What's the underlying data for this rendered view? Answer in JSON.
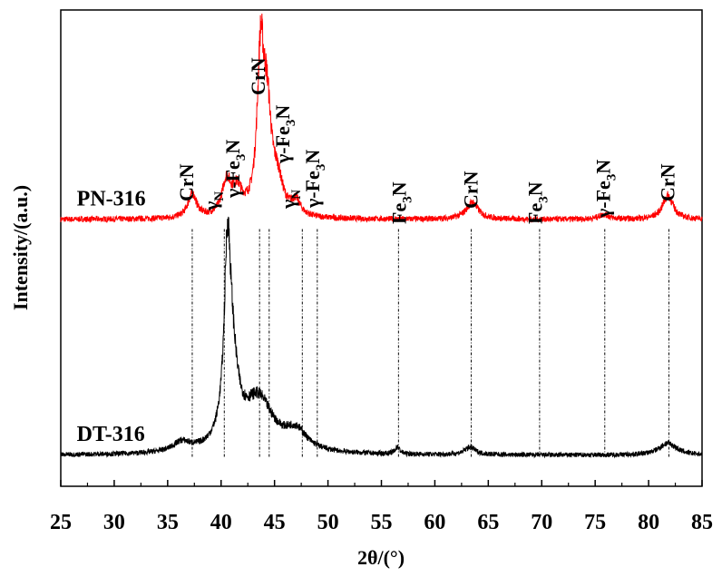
{
  "chart_data": {
    "type": "line",
    "xlabel": "2θ/(°)",
    "ylabel": "Intensity/(a.u.)",
    "xlim": [
      25,
      85
    ],
    "ylim": [
      0,
      100
    ],
    "x_ticks": [
      25,
      30,
      35,
      40,
      45,
      50,
      55,
      60,
      65,
      70,
      75,
      80,
      85
    ],
    "y_ticks_shown": false,
    "grid": false,
    "legend": "none",
    "series": [
      {
        "name": "PN-316",
        "color": "#ff0000",
        "baseline": 56,
        "peaks": [
          {
            "x": 37.3,
            "height": 5,
            "width": 0.5
          },
          {
            "x": 40.5,
            "height": 7,
            "width": 0.5
          },
          {
            "x": 41.5,
            "height": 5,
            "width": 0.6
          },
          {
            "x": 43.7,
            "height": 31,
            "width": 0.38
          },
          {
            "x": 44.3,
            "height": 20,
            "width": 0.5
          },
          {
            "x": 45.3,
            "height": 6,
            "width": 0.6
          },
          {
            "x": 47.0,
            "height": 3,
            "width": 0.5
          },
          {
            "x": 63.5,
            "height": 3.5,
            "width": 0.7
          },
          {
            "x": 75.8,
            "height": 1,
            "width": 0.6
          },
          {
            "x": 81.8,
            "height": 5,
            "width": 0.6
          }
        ],
        "noise": 1.2
      },
      {
        "name": "DT-316",
        "color": "#000000",
        "baseline": 6.5,
        "peaks": [
          {
            "x": 36.3,
            "height": 2,
            "width": 1.0
          },
          {
            "x": 40.6,
            "height": 34,
            "width": 0.35
          },
          {
            "x": 41.0,
            "height": 16,
            "width": 0.7
          },
          {
            "x": 43.5,
            "height": 11,
            "width": 1.7
          },
          {
            "x": 47.0,
            "height": 4,
            "width": 1.2
          },
          {
            "x": 56.5,
            "height": 1.5,
            "width": 0.25
          },
          {
            "x": 63.3,
            "height": 1.6,
            "width": 0.6
          },
          {
            "x": 81.8,
            "height": 2.5,
            "width": 1.0
          }
        ],
        "noise": 1.0
      }
    ],
    "reference_lines_x": [
      37.3,
      40.3,
      43.6,
      44.5,
      47.6,
      49.0,
      56.6,
      63.4,
      69.8,
      75.9,
      81.9
    ],
    "annotations": [
      {
        "text": "CrN",
        "x": 37.4
      },
      {
        "text": "γN",
        "x": 39.7
      },
      {
        "text": "γ-Fe3N",
        "x": 41.7
      },
      {
        "text": "CrN",
        "x": 44.1
      },
      {
        "text": "γ-Fe3N",
        "x": 46.4
      },
      {
        "text": "γN",
        "x": 46.9
      },
      {
        "text": "γ-Fe3N",
        "x": 49.2
      },
      {
        "text": "Fe3N",
        "x": 57.3
      },
      {
        "text": "CrN",
        "x": 64.0
      },
      {
        "text": "Fe3N",
        "x": 70.0
      },
      {
        "text": "γ-Fe3N",
        "x": 76.4
      },
      {
        "text": "CrN",
        "x": 82.4
      }
    ]
  }
}
